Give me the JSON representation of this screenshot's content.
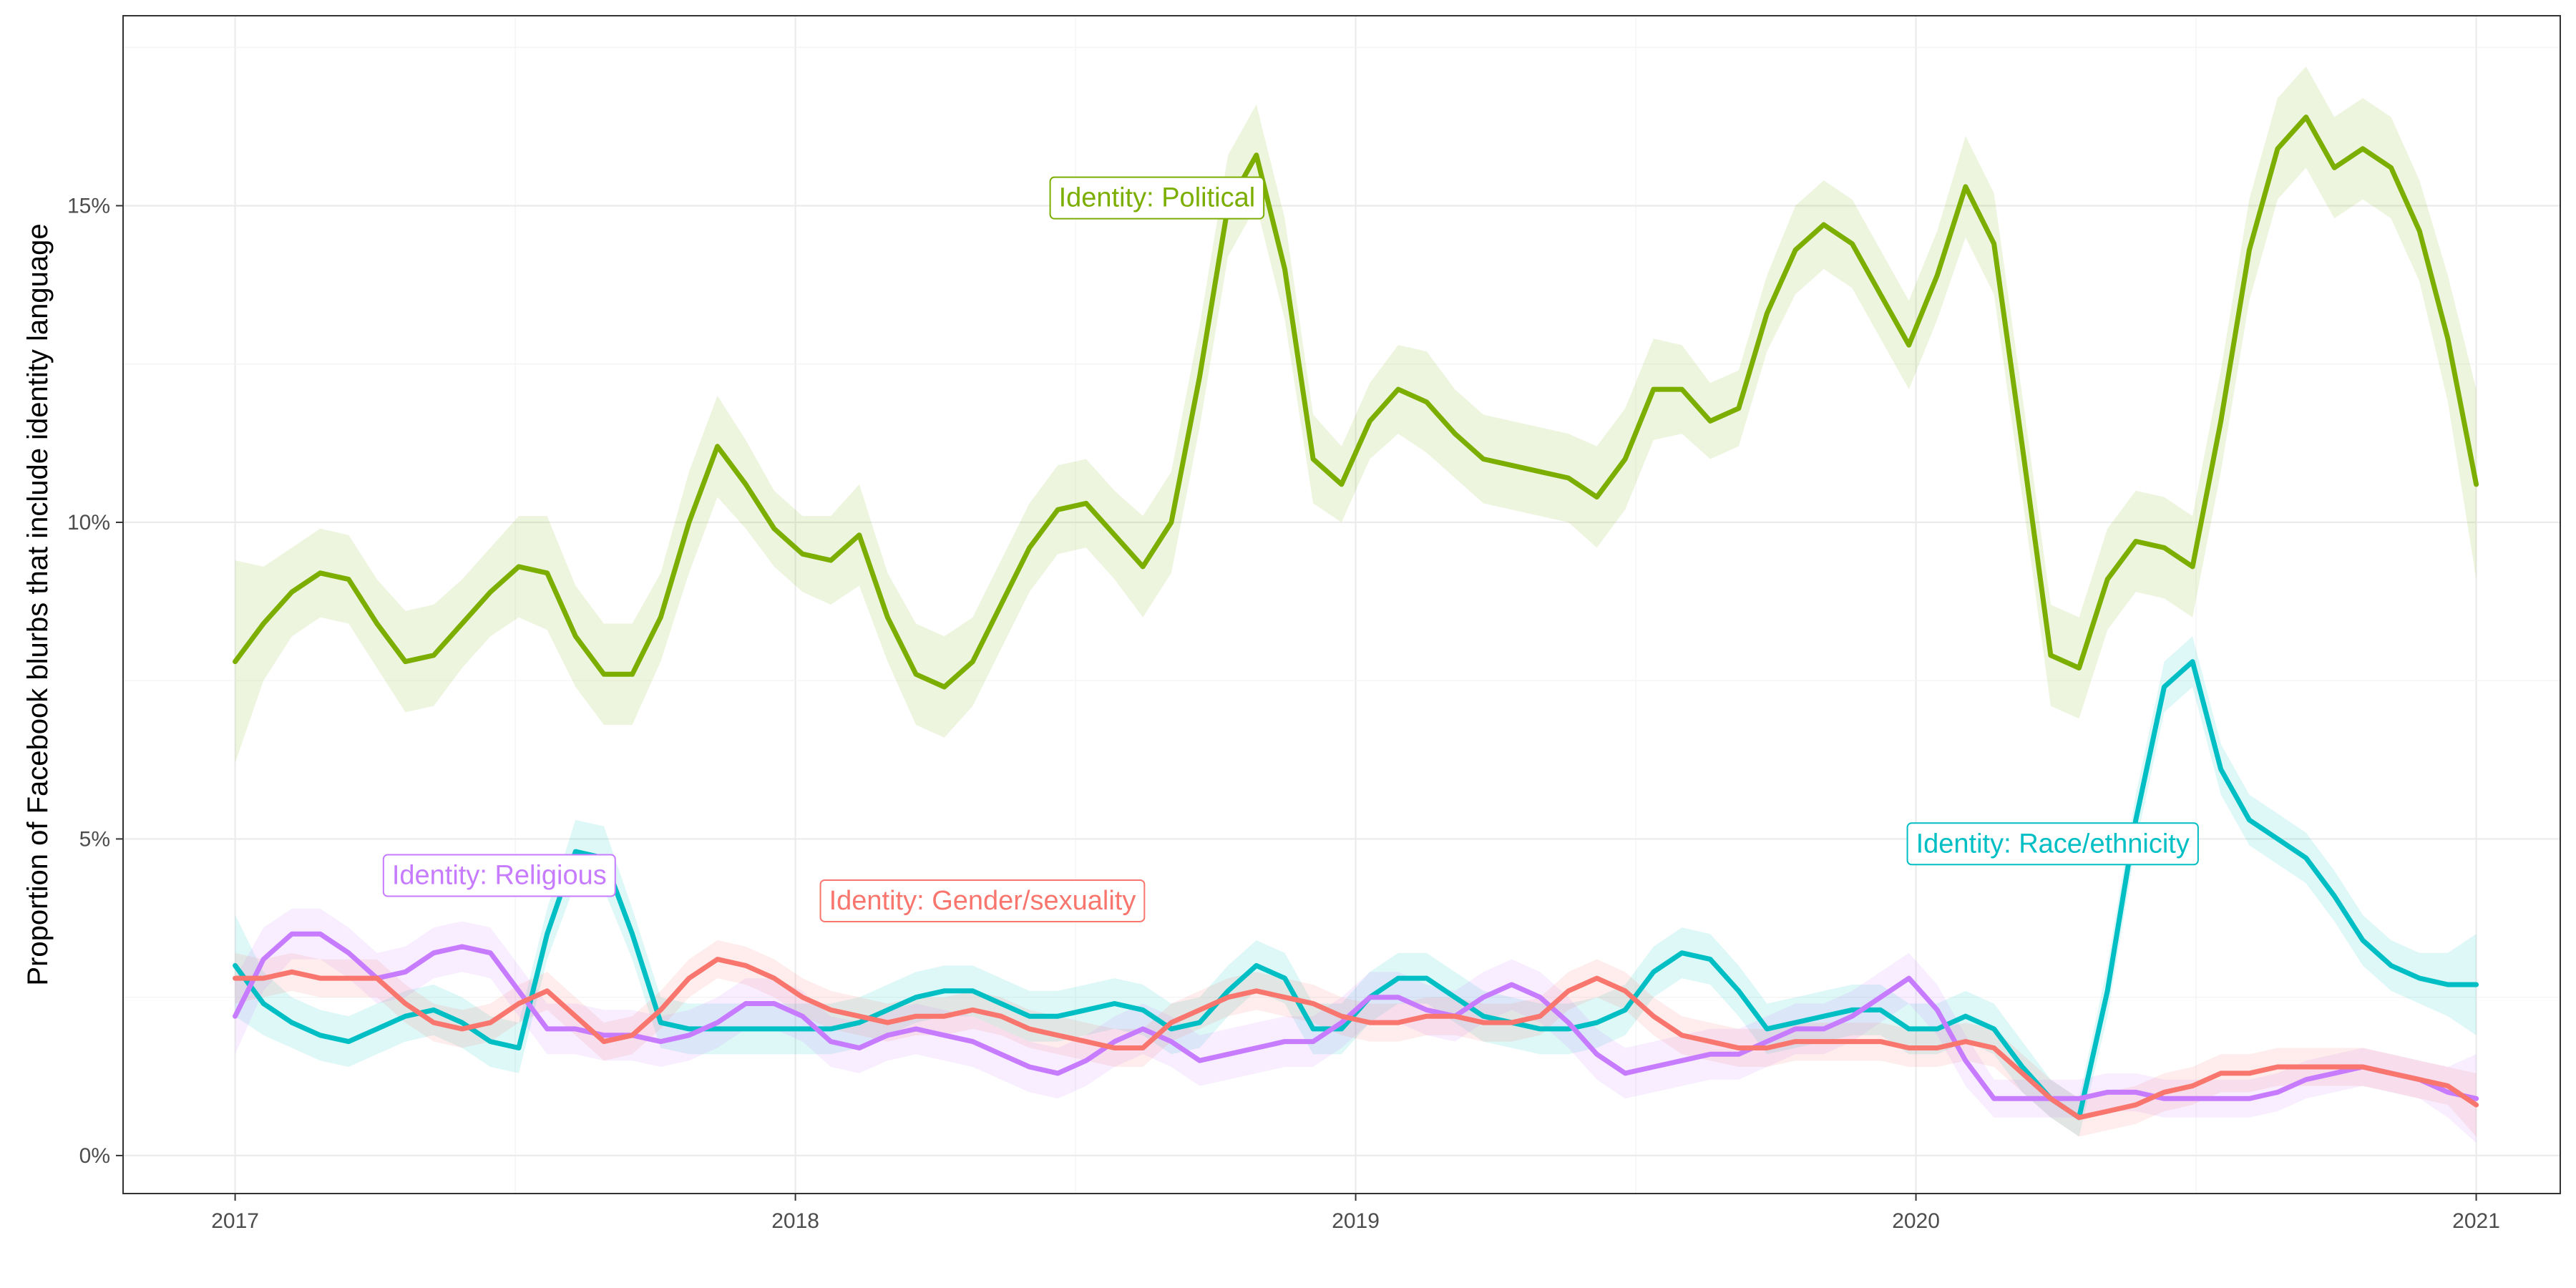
{
  "chart_data": {
    "type": "line",
    "title": "",
    "xlabel": "",
    "ylabel": "Proportion of Facebook blurbs that include identity language",
    "xlim": [
      2016.8,
      2021.15
    ],
    "ylim": [
      -0.6,
      18.0
    ],
    "x_ticks": [
      {
        "value": 2017,
        "label": "2017"
      },
      {
        "value": 2018,
        "label": "2018"
      },
      {
        "value": 2019,
        "label": "2019"
      },
      {
        "value": 2020,
        "label": "2020"
      },
      {
        "value": 2021,
        "label": "2021"
      }
    ],
    "y_ticks": [
      {
        "value": 0,
        "label": "0%"
      },
      {
        "value": 5,
        "label": "5%"
      },
      {
        "value": 10,
        "label": "10%"
      },
      {
        "value": 15,
        "label": "15%"
      }
    ],
    "grid": true,
    "legend": "none",
    "series": [
      {
        "name": "Identity: Political",
        "color": "#7CAE00",
        "label_x": 2018.47,
        "label_y": 15.1,
        "values": [
          7.8,
          8.4,
          8.9,
          9.2,
          9.1,
          8.4,
          7.8,
          7.9,
          8.4,
          8.9,
          9.3,
          9.2,
          8.2,
          7.6,
          7.6,
          8.5,
          10.0,
          11.2,
          10.6,
          9.9,
          9.5,
          9.4,
          9.8,
          8.5,
          7.6,
          7.4,
          7.8,
          8.7,
          9.6,
          10.2,
          10.3,
          9.8,
          9.3,
          10.0,
          12.3,
          15.0,
          15.8,
          14.0,
          11.0,
          10.6,
          11.6,
          12.1,
          11.9,
          11.4,
          11.0,
          10.9,
          10.8,
          10.7,
          10.4,
          11.0,
          12.1,
          12.1,
          11.6,
          11.8,
          13.3,
          14.3,
          14.7,
          14.4,
          13.6,
          12.8,
          13.9,
          15.3,
          14.4,
          11.2,
          7.9,
          7.7,
          9.1,
          9.7,
          9.6,
          9.3,
          11.6,
          14.3,
          15.9,
          16.4,
          15.6,
          15.9,
          15.6,
          14.6,
          12.9,
          10.6
        ],
        "band_width": [
          1.6,
          0.9,
          0.7,
          0.7,
          0.7,
          0.7,
          0.8,
          0.8,
          0.7,
          0.7,
          0.8,
          0.9,
          0.8,
          0.8,
          0.8,
          0.7,
          0.8,
          0.8,
          0.7,
          0.6,
          0.6,
          0.7,
          0.8,
          0.7,
          0.8,
          0.8,
          0.7,
          0.7,
          0.7,
          0.7,
          0.7,
          0.7,
          0.8,
          0.8,
          0.8,
          0.8,
          0.8,
          0.8,
          0.7,
          0.6,
          0.6,
          0.7,
          0.8,
          0.7,
          0.7,
          0.7,
          0.7,
          0.7,
          0.8,
          0.8,
          0.8,
          0.7,
          0.6,
          0.6,
          0.6,
          0.7,
          0.7,
          0.7,
          0.7,
          0.7,
          0.7,
          0.8,
          0.8,
          0.8,
          0.8,
          0.8,
          0.8,
          0.8,
          0.8,
          0.8,
          0.8,
          0.8,
          0.8,
          0.8,
          0.8,
          0.8,
          0.8,
          0.8,
          1.0,
          1.5
        ]
      },
      {
        "name": "Identity: Race/ethnicity",
        "color": "#00BFC4",
        "label_x": 2020.0,
        "label_y": 4.9,
        "values": [
          3.0,
          2.4,
          2.1,
          1.9,
          1.8,
          2.0,
          2.2,
          2.3,
          2.1,
          1.8,
          1.7,
          3.5,
          4.8,
          4.7,
          3.5,
          2.1,
          2.0,
          2.0,
          2.0,
          2.0,
          2.0,
          2.0,
          2.1,
          2.3,
          2.5,
          2.6,
          2.6,
          2.4,
          2.2,
          2.2,
          2.3,
          2.4,
          2.3,
          2.0,
          2.1,
          2.6,
          3.0,
          2.8,
          2.0,
          2.0,
          2.5,
          2.8,
          2.8,
          2.5,
          2.2,
          2.1,
          2.0,
          2.0,
          2.1,
          2.3,
          2.9,
          3.2,
          3.1,
          2.6,
          2.0,
          2.1,
          2.2,
          2.3,
          2.3,
          2.0,
          2.0,
          2.2,
          2.0,
          1.4,
          0.9,
          0.6,
          2.6,
          5.3,
          7.4,
          7.8,
          6.1,
          5.3,
          5.0,
          4.7,
          4.1,
          3.4,
          3.0,
          2.8,
          2.7,
          2.7
        ],
        "band_width": [
          0.8,
          0.5,
          0.4,
          0.4,
          0.4,
          0.4,
          0.4,
          0.4,
          0.4,
          0.4,
          0.4,
          0.4,
          0.5,
          0.5,
          0.4,
          0.4,
          0.4,
          0.4,
          0.4,
          0.4,
          0.4,
          0.4,
          0.4,
          0.4,
          0.4,
          0.4,
          0.4,
          0.4,
          0.4,
          0.4,
          0.4,
          0.4,
          0.4,
          0.4,
          0.4,
          0.4,
          0.4,
          0.4,
          0.4,
          0.4,
          0.4,
          0.4,
          0.4,
          0.4,
          0.4,
          0.4,
          0.4,
          0.4,
          0.4,
          0.4,
          0.4,
          0.4,
          0.4,
          0.4,
          0.4,
          0.4,
          0.4,
          0.4,
          0.4,
          0.4,
          0.4,
          0.4,
          0.4,
          0.4,
          0.3,
          0.3,
          0.4,
          0.4,
          0.4,
          0.4,
          0.4,
          0.4,
          0.4,
          0.4,
          0.4,
          0.4,
          0.4,
          0.4,
          0.5,
          0.8
        ]
      },
      {
        "name": "Identity: Religious",
        "color": "#C77CFF",
        "label_x": 2017.28,
        "label_y": 4.4,
        "values": [
          2.2,
          3.1,
          3.5,
          3.5,
          3.2,
          2.8,
          2.9,
          3.2,
          3.3,
          3.2,
          2.6,
          2.0,
          2.0,
          1.9,
          1.9,
          1.8,
          1.9,
          2.1,
          2.4,
          2.4,
          2.2,
          1.8,
          1.7,
          1.9,
          2.0,
          1.9,
          1.8,
          1.6,
          1.4,
          1.3,
          1.5,
          1.8,
          2.0,
          1.8,
          1.5,
          1.6,
          1.7,
          1.8,
          1.8,
          2.1,
          2.5,
          2.5,
          2.3,
          2.2,
          2.5,
          2.7,
          2.5,
          2.1,
          1.6,
          1.3,
          1.4,
          1.5,
          1.6,
          1.6,
          1.8,
          2.0,
          2.0,
          2.2,
          2.5,
          2.8,
          2.3,
          1.5,
          0.9,
          0.9,
          0.9,
          0.9,
          1.0,
          1.0,
          0.9,
          0.9,
          0.9,
          0.9,
          1.0,
          1.2,
          1.3,
          1.4,
          1.3,
          1.2,
          1.0,
          0.9
        ],
        "band_width": [
          0.6,
          0.5,
          0.4,
          0.4,
          0.4,
          0.4,
          0.4,
          0.4,
          0.4,
          0.4,
          0.4,
          0.4,
          0.4,
          0.4,
          0.4,
          0.4,
          0.4,
          0.4,
          0.4,
          0.4,
          0.4,
          0.4,
          0.4,
          0.4,
          0.4,
          0.4,
          0.4,
          0.4,
          0.4,
          0.4,
          0.4,
          0.4,
          0.4,
          0.4,
          0.4,
          0.4,
          0.4,
          0.4,
          0.4,
          0.4,
          0.4,
          0.4,
          0.4,
          0.4,
          0.4,
          0.4,
          0.4,
          0.4,
          0.4,
          0.4,
          0.4,
          0.4,
          0.4,
          0.4,
          0.4,
          0.4,
          0.4,
          0.4,
          0.4,
          0.4,
          0.4,
          0.4,
          0.3,
          0.3,
          0.3,
          0.3,
          0.3,
          0.3,
          0.3,
          0.3,
          0.3,
          0.3,
          0.3,
          0.3,
          0.3,
          0.3,
          0.3,
          0.3,
          0.4,
          0.7
        ]
      },
      {
        "name": "Identity: Gender/sexuality",
        "color": "#F8766D",
        "label_x": 2018.06,
        "label_y": 4.0,
        "values": [
          2.8,
          2.8,
          2.9,
          2.8,
          2.8,
          2.8,
          2.4,
          2.1,
          2.0,
          2.1,
          2.4,
          2.6,
          2.2,
          1.8,
          1.9,
          2.3,
          2.8,
          3.1,
          3.0,
          2.8,
          2.5,
          2.3,
          2.2,
          2.1,
          2.2,
          2.2,
          2.3,
          2.2,
          2.0,
          1.9,
          1.8,
          1.7,
          1.7,
          2.1,
          2.3,
          2.5,
          2.6,
          2.5,
          2.4,
          2.2,
          2.1,
          2.1,
          2.2,
          2.2,
          2.1,
          2.1,
          2.2,
          2.6,
          2.8,
          2.6,
          2.2,
          1.9,
          1.8,
          1.7,
          1.7,
          1.8,
          1.8,
          1.8,
          1.8,
          1.7,
          1.7,
          1.8,
          1.7,
          1.3,
          0.9,
          0.6,
          0.7,
          0.8,
          1.0,
          1.1,
          1.3,
          1.3,
          1.4,
          1.4,
          1.4,
          1.4,
          1.3,
          1.2,
          1.1,
          0.8
        ],
        "band_width": [
          0.4,
          0.3,
          0.3,
          0.3,
          0.3,
          0.3,
          0.3,
          0.3,
          0.3,
          0.3,
          0.3,
          0.3,
          0.3,
          0.3,
          0.3,
          0.3,
          0.3,
          0.3,
          0.3,
          0.3,
          0.3,
          0.3,
          0.3,
          0.3,
          0.3,
          0.3,
          0.3,
          0.3,
          0.3,
          0.3,
          0.3,
          0.3,
          0.3,
          0.3,
          0.3,
          0.3,
          0.3,
          0.3,
          0.3,
          0.3,
          0.3,
          0.3,
          0.3,
          0.3,
          0.3,
          0.3,
          0.3,
          0.3,
          0.3,
          0.3,
          0.3,
          0.3,
          0.3,
          0.3,
          0.3,
          0.3,
          0.3,
          0.3,
          0.3,
          0.3,
          0.3,
          0.3,
          0.3,
          0.3,
          0.3,
          0.3,
          0.3,
          0.3,
          0.3,
          0.3,
          0.3,
          0.3,
          0.3,
          0.3,
          0.3,
          0.3,
          0.3,
          0.3,
          0.3,
          0.5
        ]
      }
    ]
  }
}
